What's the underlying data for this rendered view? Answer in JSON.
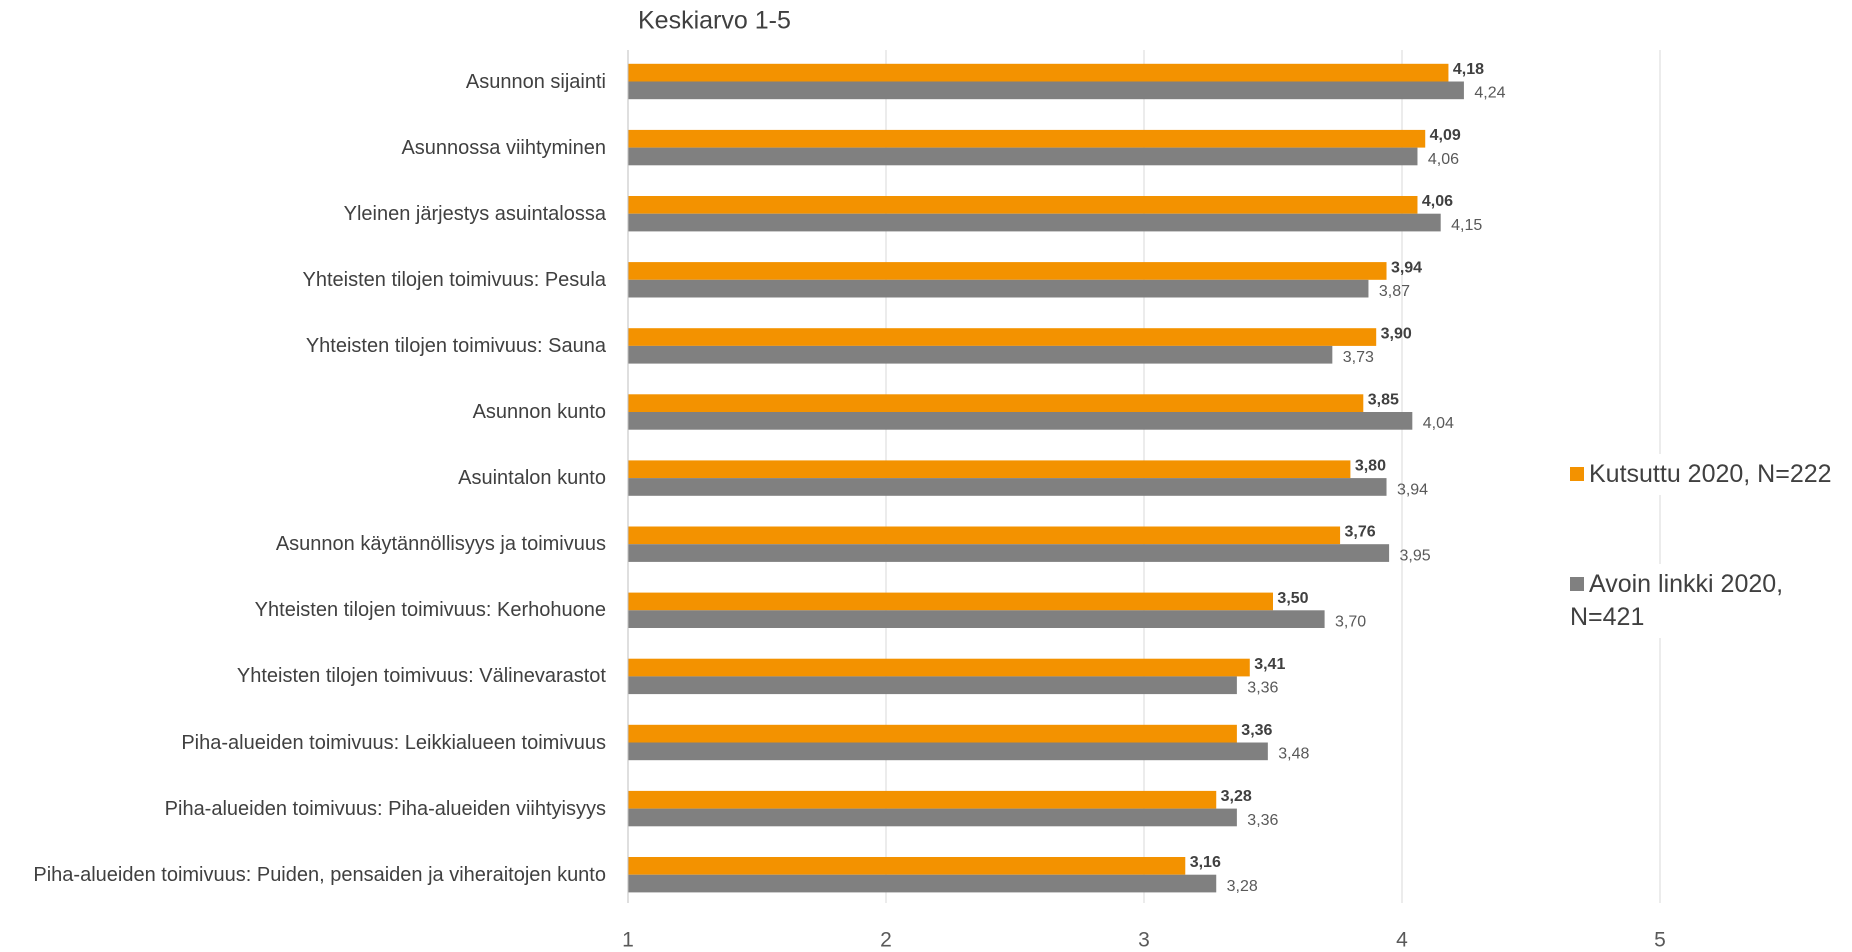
{
  "chart_data": {
    "type": "bar",
    "orientation": "horizontal",
    "title": "Keskiarvo 1-5",
    "categories": [
      "Asunnon sijainti",
      "Asunnossa viihtyminen",
      "Yleinen järjestys asuintalossa",
      "Yhteisten tilojen toimivuus: Pesula",
      "Yhteisten tilojen toimivuus: Sauna",
      "Asunnon kunto",
      "Asuintalon kunto",
      "Asunnon käytännöllisyys ja toimivuus",
      "Yhteisten tilojen toimivuus: Kerhohuone",
      "Yhteisten tilojen toimivuus: Välinevarastot",
      "Piha-alueiden toimivuus: Leikkialueen toimivuus",
      "Piha-alueiden toimivuus: Piha-alueiden viihtyisyys",
      "Piha-alueiden toimivuus: Puiden, pensaiden ja viheraitojen kunto"
    ],
    "series": [
      {
        "name": "Kutsuttu 2020, N=222",
        "color": "#f39200",
        "values": [
          4.18,
          4.09,
          4.06,
          3.94,
          3.9,
          3.85,
          3.8,
          3.76,
          3.5,
          3.41,
          3.36,
          3.28,
          3.16
        ],
        "value_labels": [
          "4,18",
          "4,09",
          "4,06",
          "3,94",
          "3,90",
          "3,85",
          "3,80",
          "3,76",
          "3,50",
          "3,41",
          "3,36",
          "3,28",
          "3,16"
        ]
      },
      {
        "name": "Avoin linkki 2020, N=421",
        "color": "#808080",
        "values": [
          4.24,
          4.06,
          4.15,
          3.87,
          3.73,
          4.04,
          3.94,
          3.95,
          3.7,
          3.36,
          3.48,
          3.36,
          3.28
        ],
        "value_labels": [
          "4,24",
          "4,06",
          "4,15",
          "3,87",
          "3,73",
          "4,04",
          "3,94",
          "3,95",
          "3,70",
          "3,36",
          "3,48",
          "3,36",
          "3,28"
        ]
      }
    ],
    "xlim": [
      1,
      5
    ],
    "xticks": [
      1,
      2,
      3,
      4,
      5
    ],
    "grid": true,
    "legend": "right"
  }
}
